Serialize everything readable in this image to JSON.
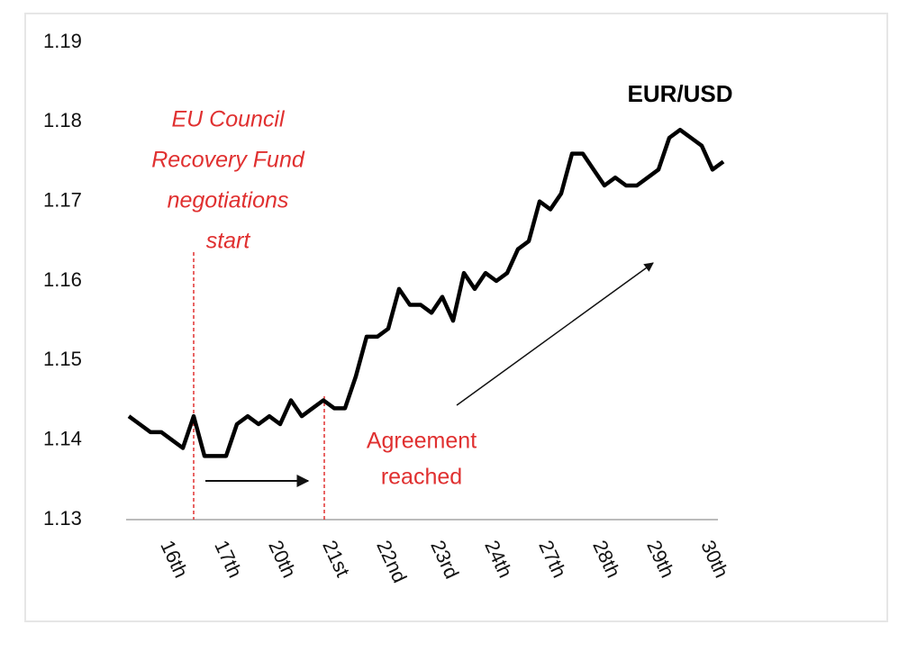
{
  "chart_data": {
    "type": "line",
    "series": [
      {
        "name": "EUR/USD",
        "color": "#000000",
        "values": [
          1.143,
          1.142,
          1.141,
          1.141,
          1.14,
          1.139,
          1.143,
          1.138,
          1.138,
          1.138,
          1.142,
          1.143,
          1.142,
          1.143,
          1.142,
          1.145,
          1.143,
          1.144,
          1.145,
          1.144,
          1.144,
          1.148,
          1.153,
          1.153,
          1.154,
          1.159,
          1.157,
          1.157,
          1.156,
          1.158,
          1.155,
          1.161,
          1.159,
          1.161,
          1.16,
          1.161,
          1.164,
          1.165,
          1.17,
          1.169,
          1.171,
          1.176,
          1.176,
          1.174,
          1.172,
          1.173,
          1.172,
          1.172,
          1.173,
          1.174,
          1.178,
          1.179,
          1.178,
          1.177,
          1.174,
          1.175
        ]
      }
    ],
    "xlim": [
      0,
      55
    ],
    "xticks": [
      {
        "value": 4,
        "label": "16th"
      },
      {
        "value": 9,
        "label": "17th"
      },
      {
        "value": 14,
        "label": "20th"
      },
      {
        "value": 19,
        "label": "21st"
      },
      {
        "value": 24,
        "label": "22nd"
      },
      {
        "value": 29,
        "label": "23rd"
      },
      {
        "value": 34,
        "label": "24th"
      },
      {
        "value": 39,
        "label": "27th"
      },
      {
        "value": 44,
        "label": "28th"
      },
      {
        "value": 49,
        "label": "29th"
      },
      {
        "value": 54,
        "label": "30th"
      }
    ],
    "ylim": [
      1.13,
      1.19
    ],
    "yticks": [
      1.13,
      1.14,
      1.15,
      1.16,
      1.17,
      1.18,
      1.19
    ],
    "annotations": [
      {
        "lines": [
          "EU Council",
          "Recovery Fund",
          "negotiations",
          "start"
        ]
      },
      {
        "lines": [
          "Agreement",
          "reached"
        ]
      }
    ]
  }
}
